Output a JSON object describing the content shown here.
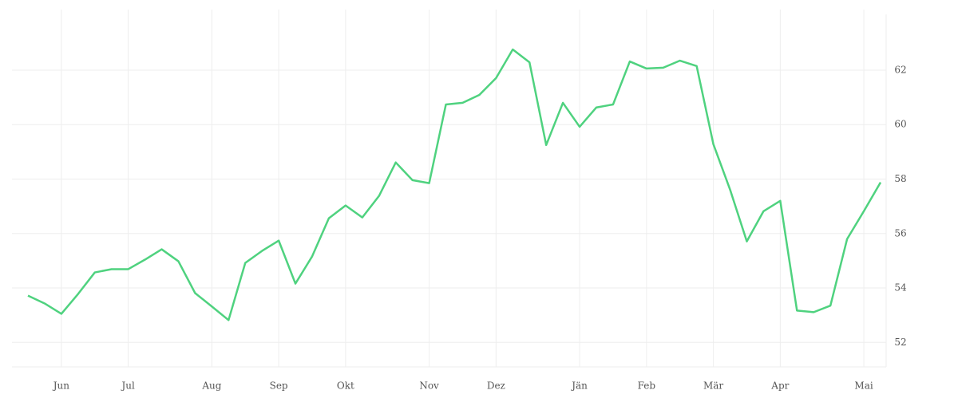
{
  "chart_data": {
    "type": "line",
    "categories": [
      null,
      null,
      "Jun",
      null,
      null,
      null,
      "Jul",
      null,
      null,
      null,
      null,
      "Aug",
      null,
      null,
      null,
      "Sep",
      null,
      null,
      null,
      "Okt",
      null,
      null,
      null,
      null,
      "Nov",
      null,
      null,
      null,
      "Dez",
      null,
      null,
      null,
      null,
      "Jän",
      null,
      null,
      null,
      "Feb",
      null,
      null,
      null,
      "Mär",
      null,
      null,
      null,
      "Apr",
      null,
      null,
      null,
      null,
      "Mai",
      null
    ],
    "series": [
      {
        "color": "#4fd27f",
        "values": [
          53.72,
          53.43,
          53.05,
          53.78,
          54.57,
          54.69,
          54.69,
          55.04,
          55.42,
          54.98,
          53.81,
          53.32,
          52.82,
          54.92,
          55.36,
          55.74,
          54.16,
          55.16,
          56.56,
          57.03,
          56.59,
          57.38,
          58.61,
          57.96,
          57.85,
          60.74,
          60.8,
          61.09,
          61.71,
          62.76,
          62.29,
          59.25,
          60.8,
          59.92,
          60.63,
          60.74,
          62.32,
          62.06,
          62.09,
          62.35,
          62.15,
          59.28,
          57.61,
          55.71,
          56.82,
          57.2,
          53.17,
          53.11,
          53.35,
          55.8,
          56.82,
          57.88
        ]
      }
    ],
    "ylim": [
      51.1,
      64.05
    ],
    "yticks": [
      52,
      54,
      56,
      58,
      60,
      62
    ],
    "grid": true
  }
}
